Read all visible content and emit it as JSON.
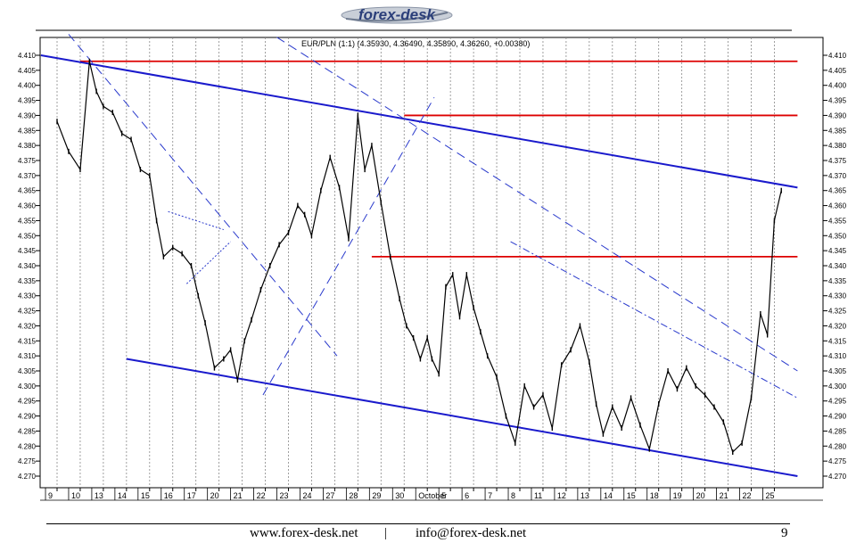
{
  "logo": {
    "text": "forex-desk"
  },
  "footer": {
    "website": "www.forex-desk.net",
    "separator": "|",
    "email": "info@forex-desk.net",
    "page_number": "9"
  },
  "colors": {
    "price": "#000000",
    "resistance": "#dd0000",
    "channel": "#1a1acc",
    "trend_dashed": "#2a3acc",
    "grid": "#888888"
  },
  "chart_data": {
    "type": "line",
    "title": "EUR/PLN (1:1) (4.35930, 4.36490, 4.35890, 4.36260, +0.00380)",
    "xlabel": "",
    "ylabel": "",
    "ylim": [
      4.267,
      4.412
    ],
    "y_ticks": [
      "4.410",
      "4.405",
      "4.400",
      "4.395",
      "4.390",
      "4.385",
      "4.380",
      "4.375",
      "4.370",
      "4.365",
      "4.360",
      "4.355",
      "4.350",
      "4.345",
      "4.340",
      "4.335",
      "4.330",
      "4.325",
      "4.320",
      "4.315",
      "4.310",
      "4.305",
      "4.300",
      "4.295",
      "4.290",
      "4.285",
      "4.280",
      "4.275",
      "4.270"
    ],
    "x_ticks": [
      "9",
      "10",
      "13",
      "14",
      "15",
      "16",
      "17",
      "20",
      "21",
      "22",
      "23",
      "24",
      "27",
      "28",
      "29",
      "30",
      "October",
      "5",
      "6",
      "7",
      "8",
      "11",
      "12",
      "13",
      "14",
      "15",
      "18",
      "19",
      "20",
      "21",
      "22",
      "25"
    ],
    "grid": true,
    "y_axis": "both sides",
    "series": [
      {
        "x": [
          0.0,
          0.5,
          1.0,
          1.4,
          1.7,
          2.0,
          2.4,
          2.8,
          3.2,
          3.6,
          4.0,
          4.3,
          4.6,
          5.0,
          5.4,
          5.8,
          6.1,
          6.4,
          6.8,
          7.2,
          7.5,
          7.8,
          8.1,
          8.4,
          8.8,
          9.2,
          9.6,
          10.0,
          10.4,
          10.7,
          11.0,
          11.4,
          11.8,
          12.2,
          12.6,
          13.0,
          13.3,
          13.6,
          14.0,
          14.4,
          14.8,
          15.1,
          15.4,
          15.7,
          16.0,
          16.2,
          16.5,
          16.8,
          17.1,
          17.4,
          17.7,
          18.0,
          18.3,
          18.6,
          19.0,
          19.4,
          19.8,
          20.2,
          20.6,
          21.0,
          21.4,
          21.8,
          22.2,
          22.6,
          23.0,
          23.3,
          23.6,
          24.0,
          24.4,
          24.8,
          25.2,
          25.6,
          26.0,
          26.4,
          26.8,
          27.2,
          27.6,
          28.0,
          28.4,
          28.8,
          29.2,
          29.6,
          30.0,
          30.4,
          30.7,
          31.0,
          31.3
        ],
        "y": [
          4.388,
          4.378,
          4.372,
          4.408,
          4.398,
          4.393,
          4.391,
          4.384,
          4.382,
          4.372,
          4.37,
          4.355,
          4.343,
          4.346,
          4.344,
          4.34,
          4.33,
          4.321,
          4.306,
          4.309,
          4.312,
          4.302,
          4.315,
          4.322,
          4.332,
          4.34,
          4.347,
          4.351,
          4.36,
          4.357,
          4.35,
          4.365,
          4.376,
          4.366,
          4.349,
          4.39,
          4.372,
          4.38,
          4.361,
          4.343,
          4.329,
          4.32,
          4.316,
          4.309,
          4.316,
          4.309,
          4.304,
          4.333,
          4.337,
          4.323,
          4.337,
          4.326,
          4.318,
          4.31,
          4.303,
          4.29,
          4.281,
          4.3,
          4.293,
          4.297,
          4.286,
          4.307,
          4.312,
          4.32,
          4.308,
          4.294,
          4.284,
          4.293,
          4.286,
          4.296,
          4.287,
          4.279,
          4.294,
          4.305,
          4.299,
          4.306,
          4.3,
          4.297,
          4.293,
          4.288,
          4.278,
          4.281,
          4.296,
          4.324,
          4.317,
          4.355,
          4.365
        ]
      }
    ],
    "annotations": [
      {
        "kind": "resistance",
        "from": [
          1.0,
          4.408
        ],
        "to": [
          32.0,
          4.408
        ]
      },
      {
        "kind": "resistance",
        "from": [
          15.0,
          4.39
        ],
        "to": [
          32.0,
          4.39
        ]
      },
      {
        "kind": "resistance",
        "from": [
          13.6,
          4.343
        ],
        "to": [
          32.0,
          4.343
        ]
      },
      {
        "kind": "channel",
        "from": [
          -0.7,
          4.41
        ],
        "to": [
          32.0,
          4.366
        ]
      },
      {
        "kind": "channel",
        "from": [
          3.0,
          4.309
        ],
        "to": [
          32.0,
          4.27
        ]
      },
      {
        "kind": "dashed",
        "from": [
          0.5,
          4.417
        ],
        "to": [
          12.1,
          4.31
        ]
      },
      {
        "kind": "dashed",
        "from": [
          9.5,
          4.416
        ],
        "to": [
          32.0,
          4.305
        ]
      },
      {
        "kind": "dashed",
        "from": [
          8.9,
          4.297
        ],
        "to": [
          16.3,
          4.396
        ]
      },
      {
        "kind": "dashdot",
        "from": [
          19.6,
          4.348
        ],
        "to": [
          32.0,
          4.296
        ]
      },
      {
        "kind": "dotted",
        "from": [
          4.8,
          4.358
        ],
        "to": [
          7.2,
          4.352
        ]
      },
      {
        "kind": "dotted",
        "from": [
          5.6,
          4.334
        ],
        "to": [
          7.5,
          4.348
        ]
      }
    ]
  }
}
